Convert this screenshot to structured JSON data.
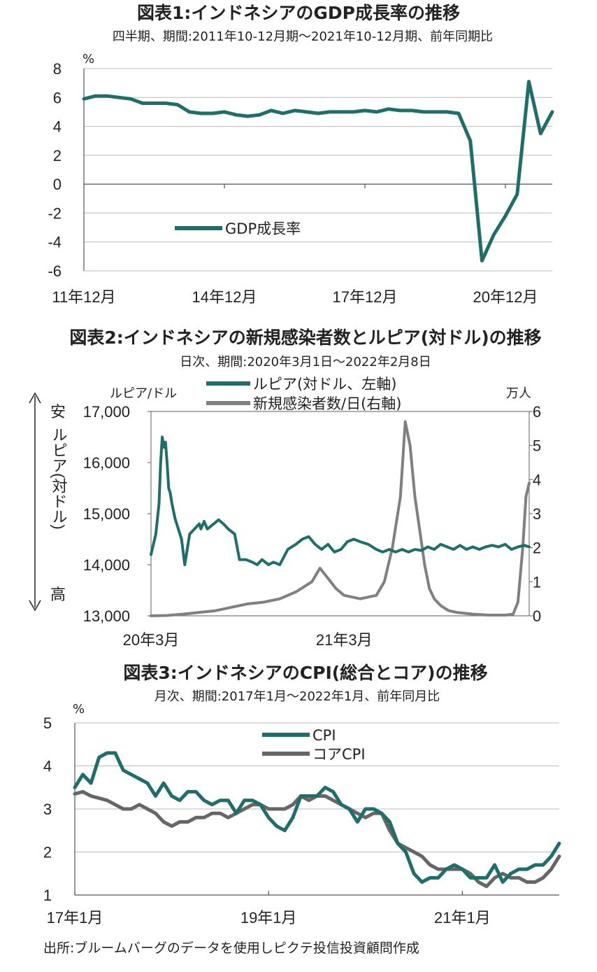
{
  "colors": {
    "teal": "#1e6e6c",
    "gray": "#808080",
    "dark": "#222222",
    "grid": "#bbbbbb"
  },
  "chart_data": [
    {
      "type": "line",
      "title": "図表1:インドネシアのGDP成長率の推移",
      "subtitle": "四半期、期間:2011年10-12月期～2021年10-12月期、前年同期比",
      "unit": "%",
      "ylim": [
        -6,
        8
      ],
      "yticks": [
        "8",
        "6",
        "4",
        "2",
        "0",
        "-2",
        "-4",
        "-6"
      ],
      "xtick_labels": [
        "11年12月",
        "14年12月",
        "17年12月",
        "20年12月"
      ],
      "xtick_index": [
        0,
        12,
        24,
        36
      ],
      "legend": [
        "GDP成長率"
      ],
      "series": [
        {
          "name": "GDP成長率",
          "values": [
            5.9,
            6.1,
            6.1,
            6.0,
            5.9,
            5.6,
            5.6,
            5.6,
            5.5,
            5.0,
            4.9,
            4.9,
            5.0,
            4.8,
            4.7,
            4.8,
            5.1,
            4.9,
            5.1,
            5.0,
            4.9,
            5.0,
            5.0,
            5.0,
            5.1,
            5.0,
            5.2,
            5.1,
            5.1,
            5.0,
            5.0,
            5.0,
            4.9,
            3.0,
            -5.3,
            -3.5,
            -2.2,
            -0.7,
            7.1,
            3.5,
            5.0
          ]
        }
      ]
    },
    {
      "type": "line",
      "title": "図表2:インドネシアの新規感染者数とルピア(対ドル)の推移",
      "subtitle": "日次、期間:2020年3月1日～2022年2月8日",
      "left_axis_label": "ルピア/ドル",
      "right_axis_label": "万人",
      "yleft_ticks": [
        "17,000",
        "16,000",
        "15,000",
        "14,000",
        "13,000"
      ],
      "yright_ticks": [
        "6",
        "5",
        "4",
        "3",
        "2",
        "1",
        "0"
      ],
      "ylim_left": [
        13000,
        17000
      ],
      "ylim_right": [
        0,
        6
      ],
      "arrow_top": "安",
      "arrow_bottom": "高",
      "arrow_middle": "ルピア(対ドル)",
      "xtick_labels": [
        "20年3月",
        "21年3月"
      ],
      "legend": [
        "ルピア(対ドル、左軸)",
        "新規感染者数/日(右軸)"
      ],
      "x_month_ticks": [
        0,
        12
      ],
      "series": [
        {
          "name": "ルピア(対ドル、左軸)",
          "axis": "left",
          "x": [
            0,
            0.3,
            0.5,
            0.6,
            0.7,
            0.8,
            0.9,
            1.0,
            1.1,
            1.2,
            1.3,
            1.5,
            1.7,
            1.9,
            2.1,
            2.4,
            2.7,
            3.0,
            3.1,
            3.3,
            3.5,
            3.9,
            4.2,
            4.5,
            4.8,
            5.2,
            5.5,
            5.9,
            6.3,
            6.6,
            6.9,
            7.3,
            7.6,
            8.0,
            8.5,
            9.0,
            9.4,
            9.8,
            10.2,
            10.6,
            11.0,
            11.4,
            11.8,
            12.2,
            12.6,
            13.0,
            13.5,
            14.0,
            14.4,
            14.8,
            15.2,
            15.6,
            16.0,
            16.4,
            16.8,
            17.2,
            17.6,
            18.0,
            18.4,
            18.8,
            19.2,
            19.6,
            20.0,
            20.4,
            20.8,
            21.2,
            21.6,
            22.0,
            22.4,
            22.8,
            23.2,
            23.5
          ],
          "values": [
            14200,
            14600,
            15200,
            16000,
            16500,
            16300,
            16400,
            16000,
            15500,
            15400,
            15200,
            14900,
            14700,
            14500,
            14000,
            14600,
            14700,
            14800,
            14700,
            14850,
            14700,
            14800,
            14880,
            14800,
            14700,
            14600,
            14100,
            14100,
            14050,
            14000,
            14100,
            14000,
            14050,
            14000,
            14300,
            14400,
            14500,
            14550,
            14400,
            14300,
            14400,
            14250,
            14300,
            14450,
            14500,
            14450,
            14400,
            14300,
            14250,
            14300,
            14250,
            14300,
            14250,
            14300,
            14280,
            14350,
            14300,
            14400,
            14350,
            14300,
            14380,
            14300,
            14350,
            14300,
            14350,
            14380,
            14350,
            14400,
            14300,
            14350,
            14380,
            14350
          ]
        },
        {
          "name": "新規感染者数/日(右軸)",
          "axis": "right",
          "x": [
            0,
            1,
            2,
            3,
            4,
            5,
            6,
            7,
            8,
            9,
            10,
            10.5,
            11,
            11.5,
            12,
            12.5,
            13,
            13.5,
            14,
            14.5,
            15,
            15.5,
            15.8,
            16.1,
            16.4,
            16.7,
            17.0,
            17.3,
            17.6,
            18.0,
            18.5,
            19,
            20,
            21,
            22,
            22.5,
            22.8,
            23.1,
            23.3,
            23.5
          ],
          "values": [
            0,
            0.01,
            0.05,
            0.1,
            0.15,
            0.25,
            0.35,
            0.4,
            0.5,
            0.7,
            1.0,
            1.4,
            1.1,
            0.8,
            0.6,
            0.55,
            0.5,
            0.55,
            0.6,
            1.0,
            2.0,
            3.5,
            5.7,
            5.0,
            3.5,
            2.5,
            1.5,
            0.8,
            0.5,
            0.3,
            0.15,
            0.1,
            0.05,
            0.02,
            0.02,
            0.05,
            0.4,
            2.0,
            3.5,
            3.9
          ]
        }
      ]
    },
    {
      "type": "line",
      "title": "図表3:インドネシアのCPI(総合とコア)の推移",
      "subtitle": "月次、期間:2017年1月～2022年1月、前年同月比",
      "unit": "%",
      "ylim": [
        1,
        5
      ],
      "yticks": [
        "5",
        "4",
        "3",
        "2",
        "1"
      ],
      "xtick_labels": [
        "17年1月",
        "19年1月",
        "21年1月"
      ],
      "xtick_index": [
        0,
        24,
        48
      ],
      "legend": [
        "CPI",
        "コアCPI"
      ],
      "series": [
        {
          "name": "CPI",
          "values": [
            3.5,
            3.8,
            3.6,
            4.2,
            4.3,
            4.3,
            3.9,
            3.8,
            3.7,
            3.6,
            3.3,
            3.6,
            3.3,
            3.2,
            3.4,
            3.4,
            3.2,
            3.1,
            3.2,
            3.2,
            2.9,
            3.2,
            3.2,
            3.1,
            2.8,
            2.6,
            2.5,
            2.8,
            3.3,
            3.3,
            3.3,
            3.5,
            3.4,
            3.1,
            3.0,
            2.7,
            3.0,
            3.0,
            2.9,
            2.7,
            2.2,
            2.0,
            1.5,
            1.3,
            1.4,
            1.4,
            1.6,
            1.7,
            1.6,
            1.4,
            1.4,
            1.4,
            1.7,
            1.3,
            1.5,
            1.6,
            1.6,
            1.7,
            1.7,
            1.9,
            2.2
          ]
        },
        {
          "name": "コアCPI",
          "values": [
            3.35,
            3.4,
            3.3,
            3.25,
            3.2,
            3.1,
            3.0,
            3.0,
            3.1,
            3.0,
            2.9,
            2.7,
            2.6,
            2.7,
            2.7,
            2.8,
            2.8,
            2.9,
            2.9,
            2.8,
            2.9,
            3.0,
            3.1,
            3.1,
            3.0,
            3.0,
            3.0,
            3.1,
            3.3,
            3.2,
            3.3,
            3.3,
            3.2,
            3.1,
            3.0,
            2.9,
            2.8,
            2.9,
            2.9,
            2.5,
            2.2,
            2.1,
            2.0,
            1.9,
            1.7,
            1.6,
            1.6,
            1.6,
            1.6,
            1.5,
            1.3,
            1.2,
            1.4,
            1.5,
            1.4,
            1.4,
            1.3,
            1.3,
            1.4,
            1.6,
            1.9
          ]
        }
      ]
    }
  ],
  "source": "出所:ブルームバーグのデータを使用しピクテ投信投資顧問作成"
}
